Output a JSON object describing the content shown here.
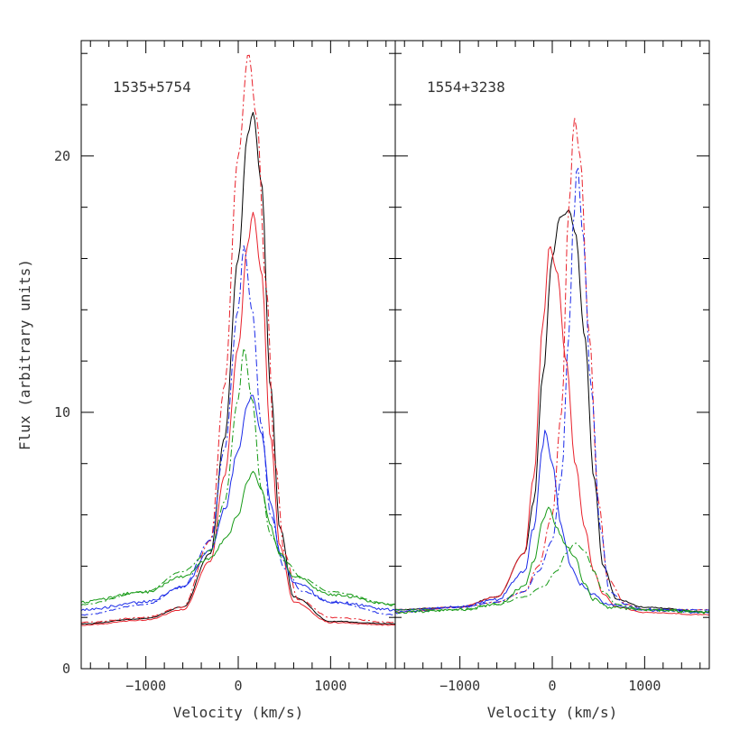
{
  "chart_data": {
    "type": "line",
    "ylabel": "Flux (arbitrary units)",
    "ylim": [
      0,
      24.5
    ],
    "y_major_ticks": [
      0,
      10,
      20
    ],
    "y_minor_step": 2,
    "colors": {
      "black": "#000000",
      "red": "#e8202a",
      "blue": "#1a2ae8",
      "green": "#169a16"
    },
    "panels": [
      {
        "label": "1535+5754",
        "xlabel": "Velocity (km/s)",
        "xlim": [
          -1700,
          1700
        ],
        "x_major_ticks": [
          -1000,
          0,
          1000
        ],
        "x_tick_labels": [
          "−1000",
          "0",
          "1000"
        ],
        "x_minor_step": 200,
        "series": [
          {
            "color": "black",
            "dash": "solid",
            "peak": 21.7,
            "center": 160,
            "width": 230,
            "base": 1.75,
            "noise": 0.02,
            "wings": [
              [
                -1700,
                1.75
              ],
              [
                -1000,
                1.95
              ],
              [
                -600,
                2.4
              ],
              [
                -300,
                4.5
              ],
              [
                -150,
                9.0
              ],
              [
                0,
                16.0
              ],
              [
                100,
                20.8
              ],
              [
                160,
                21.7
              ],
              [
                250,
                19.0
              ],
              [
                350,
                11.0
              ],
              [
                450,
                5.5
              ],
              [
                600,
                2.8
              ],
              [
                1000,
                1.85
              ],
              [
                1700,
                1.75
              ]
            ]
          },
          {
            "color": "red",
            "dash": "solid",
            "peak": 17.8,
            "center": 160,
            "points": [
              [
                -1700,
                1.7
              ],
              [
                -1000,
                1.9
              ],
              [
                -600,
                2.3
              ],
              [
                -300,
                4.2
              ],
              [
                -150,
                7.5
              ],
              [
                0,
                12.5
              ],
              [
                100,
                16.5
              ],
              [
                160,
                17.8
              ],
              [
                250,
                15.5
              ],
              [
                350,
                9.0
              ],
              [
                450,
                4.8
              ],
              [
                600,
                2.6
              ],
              [
                1000,
                1.8
              ],
              [
                1700,
                1.7
              ]
            ]
          },
          {
            "color": "red",
            "dash": "dashdot",
            "peak": 24.0,
            "center": 110,
            "points": [
              [
                -1700,
                1.8
              ],
              [
                -1000,
                2.0
              ],
              [
                -600,
                2.4
              ],
              [
                -300,
                5.0
              ],
              [
                -150,
                11.0
              ],
              [
                0,
                20.0
              ],
              [
                110,
                24.0
              ],
              [
                200,
                21.5
              ],
              [
                300,
                15.0
              ],
              [
                400,
                8.0
              ],
              [
                500,
                4.5
              ],
              [
                650,
                2.7
              ],
              [
                1000,
                2.0
              ],
              [
                1700,
                1.8
              ]
            ]
          },
          {
            "color": "blue",
            "dash": "solid",
            "peak": 10.7,
            "center": 150,
            "points": [
              [
                -1700,
                2.3
              ],
              [
                -1000,
                2.6
              ],
              [
                -600,
                3.2
              ],
              [
                -300,
                4.6
              ],
              [
                -150,
                6.2
              ],
              [
                0,
                8.5
              ],
              [
                100,
                10.3
              ],
              [
                150,
                10.7
              ],
              [
                250,
                9.2
              ],
              [
                350,
                6.5
              ],
              [
                450,
                4.5
              ],
              [
                600,
                3.4
              ],
              [
                1000,
                2.6
              ],
              [
                1700,
                2.3
              ]
            ]
          },
          {
            "color": "blue",
            "dash": "dashdot",
            "peak": 16.5,
            "center": 60,
            "points": [
              [
                -1700,
                2.1
              ],
              [
                -1000,
                2.5
              ],
              [
                -600,
                3.2
              ],
              [
                -300,
                5.0
              ],
              [
                -150,
                8.5
              ],
              [
                0,
                14.0
              ],
              [
                60,
                16.5
              ],
              [
                150,
                14.0
              ],
              [
                250,
                9.5
              ],
              [
                350,
                6.0
              ],
              [
                500,
                3.9
              ],
              [
                700,
                3.0
              ],
              [
                1000,
                2.6
              ],
              [
                1700,
                2.1
              ]
            ]
          },
          {
            "color": "green",
            "dash": "solid",
            "peak": 7.7,
            "center": 160,
            "points": [
              [
                -1700,
                2.6
              ],
              [
                -1000,
                3.0
              ],
              [
                -600,
                3.6
              ],
              [
                -300,
                4.3
              ],
              [
                -150,
                5.0
              ],
              [
                0,
                6.0
              ],
              [
                100,
                7.3
              ],
              [
                160,
                7.7
              ],
              [
                250,
                7.0
              ],
              [
                350,
                5.5
              ],
              [
                450,
                4.5
              ],
              [
                600,
                3.6
              ],
              [
                1000,
                2.9
              ],
              [
                1700,
                2.5
              ]
            ]
          },
          {
            "color": "green",
            "dash": "dashdot",
            "peak": 12.5,
            "center": 60,
            "points": [
              [
                -1700,
                2.5
              ],
              [
                -1000,
                3.0
              ],
              [
                -600,
                3.8
              ],
              [
                -300,
                4.6
              ],
              [
                -150,
                6.5
              ],
              [
                0,
                10.5
              ],
              [
                60,
                12.5
              ],
              [
                150,
                10.5
              ],
              [
                250,
                7.0
              ],
              [
                350,
                5.2
              ],
              [
                500,
                4.2
              ],
              [
                700,
                3.5
              ],
              [
                1000,
                3.0
              ],
              [
                1700,
                2.5
              ]
            ]
          }
        ]
      },
      {
        "label": "1554+3238",
        "xlabel": "Velocity (km/s)",
        "xlim": [
          -1700,
          1700
        ],
        "x_major_ticks": [
          -1000,
          0,
          1000
        ],
        "x_tick_labels": [
          "−1000",
          "0",
          "1000"
        ],
        "x_minor_step": 200,
        "series": [
          {
            "color": "black",
            "dash": "solid",
            "peak": 17.9,
            "center": 180,
            "points": [
              [
                -1700,
                2.3
              ],
              [
                -1000,
                2.4
              ],
              [
                -600,
                2.8
              ],
              [
                -300,
                4.5
              ],
              [
                -200,
                6.5
              ],
              [
                -100,
                11.5
              ],
              [
                0,
                16.0
              ],
              [
                80,
                17.6
              ],
              [
                130,
                17.7
              ],
              [
                180,
                17.9
              ],
              [
                250,
                17.0
              ],
              [
                350,
                13.0
              ],
              [
                450,
                7.5
              ],
              [
                550,
                4.0
              ],
              [
                700,
                2.7
              ],
              [
                1000,
                2.4
              ],
              [
                1700,
                2.2
              ]
            ]
          },
          {
            "color": "red",
            "dash": "solid",
            "peak": 16.5,
            "center": -30,
            "points": [
              [
                -1700,
                2.2
              ],
              [
                -1000,
                2.4
              ],
              [
                -600,
                2.8
              ],
              [
                -300,
                4.5
              ],
              [
                -200,
                7.5
              ],
              [
                -100,
                13.5
              ],
              [
                -30,
                16.5
              ],
              [
                50,
                15.5
              ],
              [
                150,
                12.0
              ],
              [
                250,
                8.0
              ],
              [
                350,
                5.5
              ],
              [
                450,
                3.8
              ],
              [
                550,
                2.9
              ],
              [
                700,
                2.4
              ],
              [
                1000,
                2.2
              ],
              [
                1700,
                2.1
              ]
            ]
          },
          {
            "color": "red",
            "dash": "dashdot",
            "peak": 21.5,
            "center": 240,
            "points": [
              [
                -1700,
                2.3
              ],
              [
                -1000,
                2.4
              ],
              [
                -600,
                2.6
              ],
              [
                -300,
                3.0
              ],
              [
                -150,
                4.0
              ],
              [
                0,
                6.0
              ],
              [
                100,
                10.0
              ],
              [
                180,
                18.0
              ],
              [
                240,
                21.5
              ],
              [
                300,
                20.0
              ],
              [
                400,
                13.0
              ],
              [
                500,
                6.5
              ],
              [
                600,
                3.5
              ],
              [
                800,
                2.5
              ],
              [
                1000,
                2.3
              ],
              [
                1700,
                2.3
              ]
            ]
          },
          {
            "color": "blue",
            "dash": "solid",
            "peak": 9.3,
            "center": -80,
            "points": [
              [
                -1700,
                2.2
              ],
              [
                -1000,
                2.4
              ],
              [
                -600,
                2.7
              ],
              [
                -300,
                3.8
              ],
              [
                -200,
                5.5
              ],
              [
                -100,
                8.7
              ],
              [
                -80,
                9.3
              ],
              [
                0,
                8.0
              ],
              [
                100,
                5.5
              ],
              [
                200,
                4.0
              ],
              [
                300,
                3.3
              ],
              [
                450,
                2.9
              ],
              [
                600,
                2.5
              ],
              [
                1000,
                2.3
              ],
              [
                1700,
                2.2
              ]
            ]
          },
          {
            "color": "blue",
            "dash": "dashdot",
            "peak": 19.7,
            "center": 270,
            "points": [
              [
                -1700,
                2.3
              ],
              [
                -1000,
                2.4
              ],
              [
                -600,
                2.6
              ],
              [
                -300,
                3.0
              ],
              [
                -150,
                3.8
              ],
              [
                0,
                5.0
              ],
              [
                100,
                7.5
              ],
              [
                180,
                13.0
              ],
              [
                230,
                17.5
              ],
              [
                270,
                19.7
              ],
              [
                330,
                17.0
              ],
              [
                420,
                11.0
              ],
              [
                520,
                5.5
              ],
              [
                620,
                3.0
              ],
              [
                800,
                2.5
              ],
              [
                1000,
                2.3
              ],
              [
                1700,
                2.3
              ]
            ]
          },
          {
            "color": "green",
            "dash": "solid",
            "peak": 6.3,
            "center": -40,
            "points": [
              [
                -1700,
                2.2
              ],
              [
                -1000,
                2.3
              ],
              [
                -600,
                2.5
              ],
              [
                -300,
                3.2
              ],
              [
                -200,
                4.2
              ],
              [
                -100,
                5.8
              ],
              [
                -40,
                6.3
              ],
              [
                50,
                5.5
              ],
              [
                150,
                4.8
              ],
              [
                250,
                4.3
              ],
              [
                350,
                3.3
              ],
              [
                450,
                2.7
              ],
              [
                600,
                2.4
              ],
              [
                1000,
                2.3
              ],
              [
                1700,
                2.2
              ]
            ]
          },
          {
            "color": "green",
            "dash": "dashdot",
            "peak": 4.9,
            "center": 250,
            "points": [
              [
                -1700,
                2.3
              ],
              [
                -1000,
                2.3
              ],
              [
                -600,
                2.5
              ],
              [
                -300,
                2.8
              ],
              [
                -100,
                3.2
              ],
              [
                50,
                3.8
              ],
              [
                150,
                4.5
              ],
              [
                250,
                4.9
              ],
              [
                350,
                4.6
              ],
              [
                450,
                3.8
              ],
              [
                550,
                3.0
              ],
              [
                700,
                2.5
              ],
              [
                1000,
                2.3
              ],
              [
                1700,
                2.2
              ]
            ]
          }
        ]
      }
    ]
  }
}
